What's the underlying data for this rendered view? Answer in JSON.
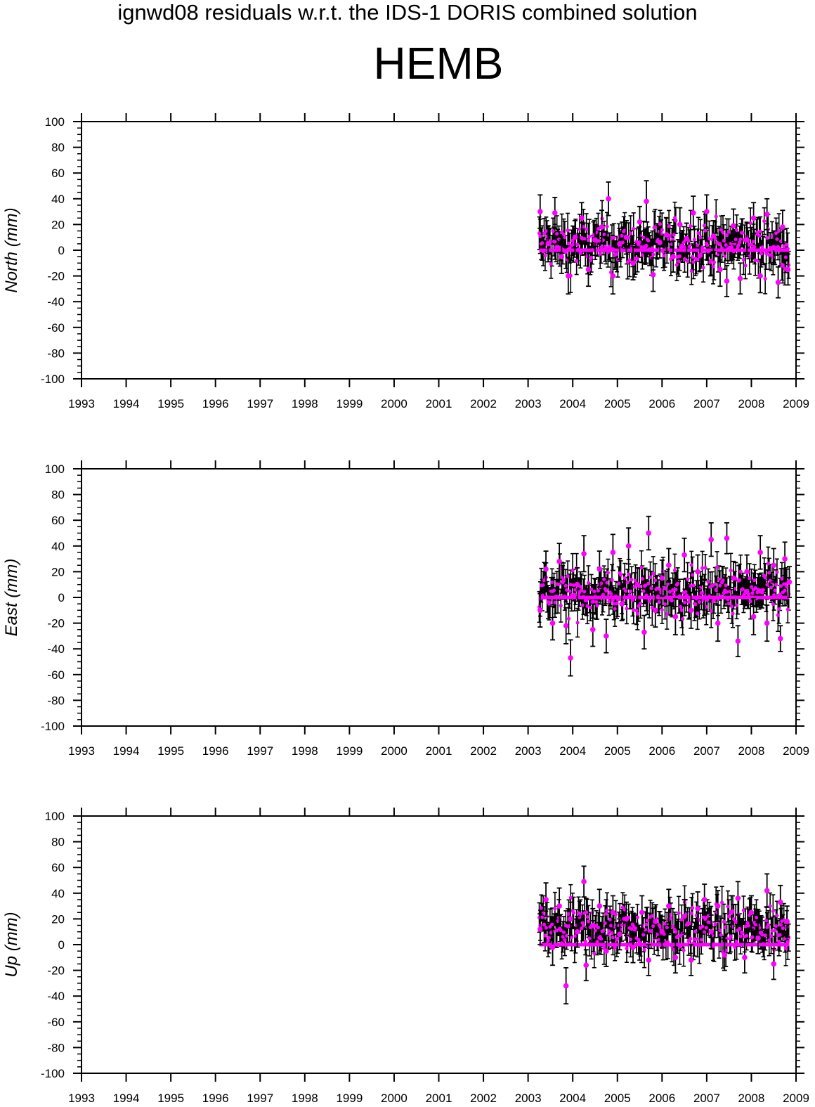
{
  "header": {
    "title": "ignwd08 residuals w.r.t. the IDS-1 DORIS combined solution",
    "station": "HEMB"
  },
  "colors": {
    "points": "#ff00ff",
    "error_bars": "#000000",
    "axes": "#000000"
  },
  "chart_data": [
    {
      "type": "scatter",
      "title": "",
      "xlabel": "",
      "ylabel": "North (mm)",
      "xlim": [
        1993,
        2009
      ],
      "ylim": [
        -100,
        100
      ],
      "x_ticks": [
        1993,
        1994,
        1995,
        1996,
        1997,
        1998,
        1999,
        2000,
        2001,
        2002,
        2003,
        2004,
        2005,
        2006,
        2007,
        2008,
        2009
      ],
      "y_ticks": [
        100,
        80,
        60,
        40,
        20,
        0,
        -20,
        -40,
        -60,
        -80,
        -100
      ],
      "grid": false,
      "error_bars": true,
      "data_range": [
        2003.25,
        2008.85
      ],
      "series": [
        {
          "x": [
            2003.27,
            2003.45,
            2003.6,
            2003.75,
            2003.9,
            2004.05,
            2004.2,
            2004.35,
            2004.5,
            2004.65,
            2004.8,
            2004.9,
            2005.05,
            2005.2,
            2005.35,
            2005.5,
            2005.65,
            2005.8,
            2005.95,
            2006.1,
            2006.25,
            2006.4,
            2006.55,
            2006.7,
            2006.85,
            2007.0,
            2007.15,
            2007.3,
            2007.45,
            2007.6,
            2007.75,
            2007.9,
            2008.05,
            2008.2,
            2008.35,
            2008.5,
            2008.6,
            2008.7,
            2008.82
          ],
          "y": [
            30,
            5,
            29,
            -5,
            -20,
            10,
            25,
            -15,
            8,
            18,
            40,
            -20,
            5,
            10,
            -10,
            22,
            38,
            -19,
            6,
            12,
            -5,
            20,
            9,
            29,
            -4,
            30,
            11,
            -15,
            -24,
            19,
            -22,
            8,
            25,
            -20,
            28,
            2,
            -25,
            18,
            -15
          ],
          "err": [
            13,
            14,
            12,
            13,
            14,
            13,
            12,
            13,
            12,
            13,
            13,
            14,
            12,
            13,
            13,
            12,
            16,
            13,
            12,
            13,
            12,
            13,
            12,
            13,
            12,
            13,
            12,
            13,
            12,
            13,
            12,
            13,
            12,
            13,
            12,
            13,
            12,
            13,
            12
          ]
        }
      ]
    },
    {
      "type": "scatter",
      "title": "",
      "xlabel": "",
      "ylabel": "East (mm)",
      "xlim": [
        1993,
        2009
      ],
      "ylim": [
        -100,
        100
      ],
      "x_ticks": [
        1993,
        1994,
        1995,
        1996,
        1997,
        1998,
        1999,
        2000,
        2001,
        2002,
        2003,
        2004,
        2005,
        2006,
        2007,
        2008,
        2009
      ],
      "y_ticks": [
        100,
        80,
        60,
        40,
        20,
        0,
        -20,
        -40,
        -60,
        -80,
        -100
      ],
      "grid": false,
      "error_bars": true,
      "data_range": [
        2003.25,
        2008.85
      ],
      "series": [
        {
          "x": [
            2003.27,
            2003.4,
            2003.55,
            2003.7,
            2003.85,
            2003.95,
            2004.1,
            2004.25,
            2004.45,
            2004.6,
            2004.75,
            2004.9,
            2005.1,
            2005.25,
            2005.45,
            2005.6,
            2005.7,
            2005.85,
            2006.0,
            2006.15,
            2006.3,
            2006.5,
            2006.65,
            2006.8,
            2006.95,
            2007.1,
            2007.25,
            2007.45,
            2007.6,
            2007.7,
            2007.9,
            2008.05,
            2008.2,
            2008.35,
            2008.5,
            2008.65,
            2008.75,
            2008.85
          ],
          "y": [
            -10,
            22,
            -20,
            28,
            -22,
            -47,
            10,
            34,
            -25,
            22,
            -30,
            35,
            -5,
            40,
            10,
            -27,
            50,
            -10,
            15,
            25,
            -15,
            33,
            -10,
            20,
            0,
            45,
            -20,
            46,
            15,
            -34,
            20,
            -15,
            35,
            -20,
            25,
            -32,
            30,
            12
          ],
          "err": [
            13,
            14,
            13,
            14,
            14,
            14,
            13,
            14,
            13,
            14,
            13,
            14,
            13,
            14,
            13,
            13,
            13,
            13,
            14,
            13,
            14,
            13,
            14,
            13,
            14,
            13,
            14,
            12,
            13,
            12,
            13,
            14,
            13,
            14,
            13,
            10,
            13,
            12
          ]
        }
      ]
    },
    {
      "type": "scatter",
      "title": "",
      "xlabel": "",
      "ylabel": "Up (mm)",
      "xlim": [
        1993,
        2009
      ],
      "ylim": [
        -100,
        100
      ],
      "x_ticks": [
        1993,
        1994,
        1995,
        1996,
        1997,
        1998,
        1999,
        2000,
        2001,
        2002,
        2003,
        2004,
        2005,
        2006,
        2007,
        2008,
        2009
      ],
      "y_ticks": [
        100,
        80,
        60,
        40,
        20,
        0,
        -20,
        -40,
        -60,
        -80,
        -100
      ],
      "grid": false,
      "error_bars": true,
      "data_range": [
        2003.25,
        2008.85
      ],
      "series": [
        {
          "x": [
            2003.27,
            2003.4,
            2003.55,
            2003.7,
            2003.85,
            2003.95,
            2004.1,
            2004.25,
            2004.3,
            2004.45,
            2004.6,
            2004.75,
            2004.9,
            2005.05,
            2005.2,
            2005.35,
            2005.55,
            2005.7,
            2005.85,
            2006.0,
            2006.15,
            2006.3,
            2006.5,
            2006.65,
            2006.8,
            2006.95,
            2007.1,
            2007.25,
            2007.4,
            2007.55,
            2007.7,
            2007.85,
            2008.0,
            2008.15,
            2008.35,
            2008.5,
            2008.65,
            2008.8
          ],
          "y": [
            12,
            35,
            -2,
            30,
            -32,
            20,
            10,
            49,
            -16,
            15,
            30,
            -5,
            25,
            8,
            20,
            -2,
            25,
            -12,
            18,
            10,
            30,
            -10,
            22,
            -12,
            28,
            35,
            10,
            30,
            -8,
            25,
            36,
            -10,
            25,
            5,
            42,
            -15,
            33,
            18
          ],
          "err": [
            12,
            13,
            14,
            14,
            14,
            13,
            12,
            12,
            12,
            13,
            13,
            12,
            13,
            12,
            13,
            12,
            13,
            12,
            13,
            12,
            13,
            12,
            13,
            12,
            13,
            12,
            13,
            12,
            12,
            13,
            13,
            12,
            13,
            12,
            13,
            12,
            13,
            12
          ]
        }
      ]
    }
  ]
}
